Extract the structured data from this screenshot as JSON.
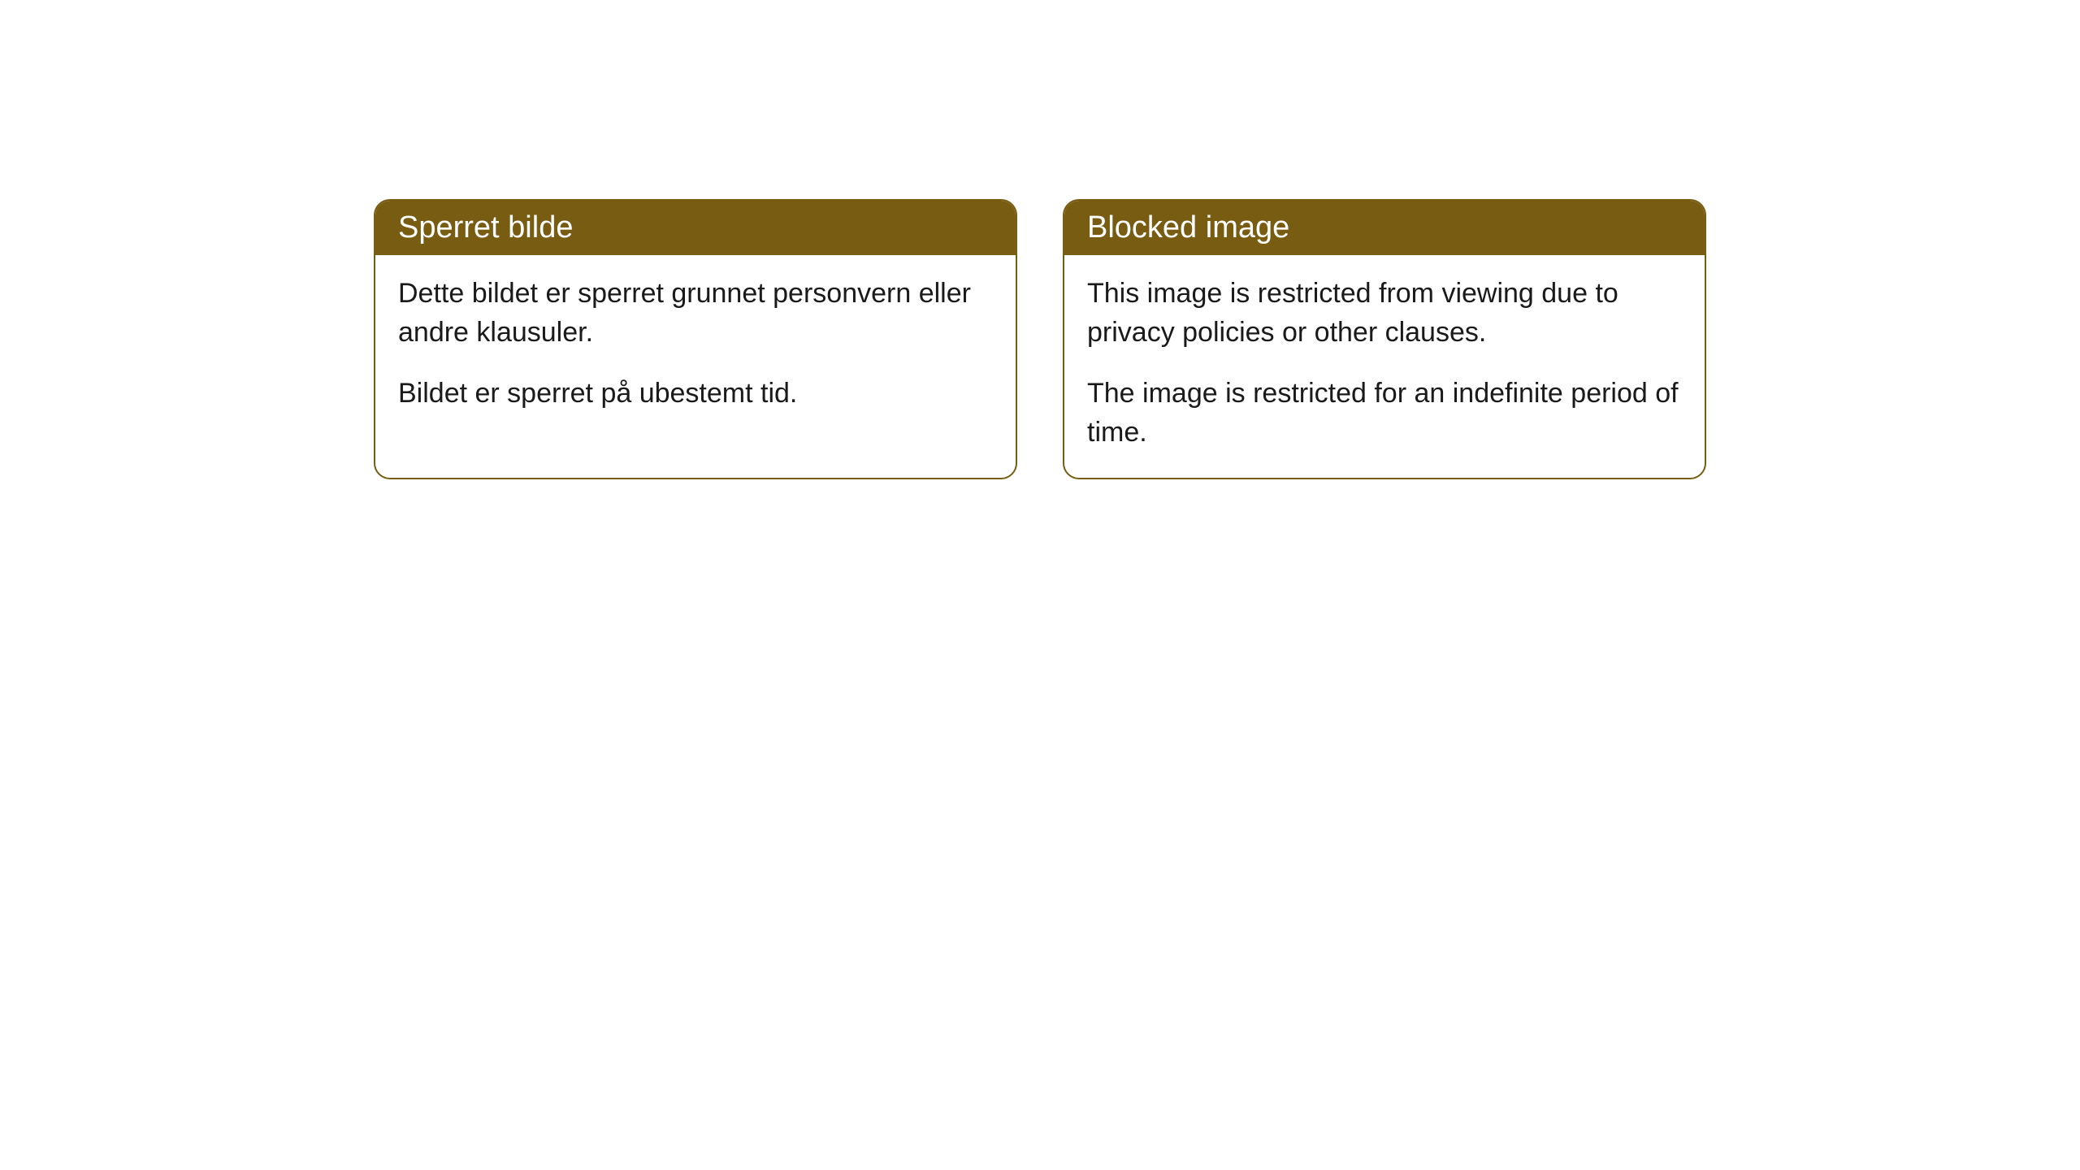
{
  "style": {
    "header_background": "#785c11",
    "header_text_color": "#ffffff",
    "border_color": "#785c11",
    "body_background": "#ffffff",
    "body_text_color": "#1a1a1a",
    "border_radius": 20,
    "header_fontsize": 38,
    "body_fontsize": 34
  },
  "cards": [
    {
      "title": "Sperret bilde",
      "paragraph1": "Dette bildet er sperret grunnet personvern eller andre klausuler.",
      "paragraph2": "Bildet er sperret på ubestemt tid."
    },
    {
      "title": "Blocked image",
      "paragraph1": "This image is restricted from viewing due to privacy policies or other clauses.",
      "paragraph2": "The image is restricted for an indefinite period of time."
    }
  ]
}
